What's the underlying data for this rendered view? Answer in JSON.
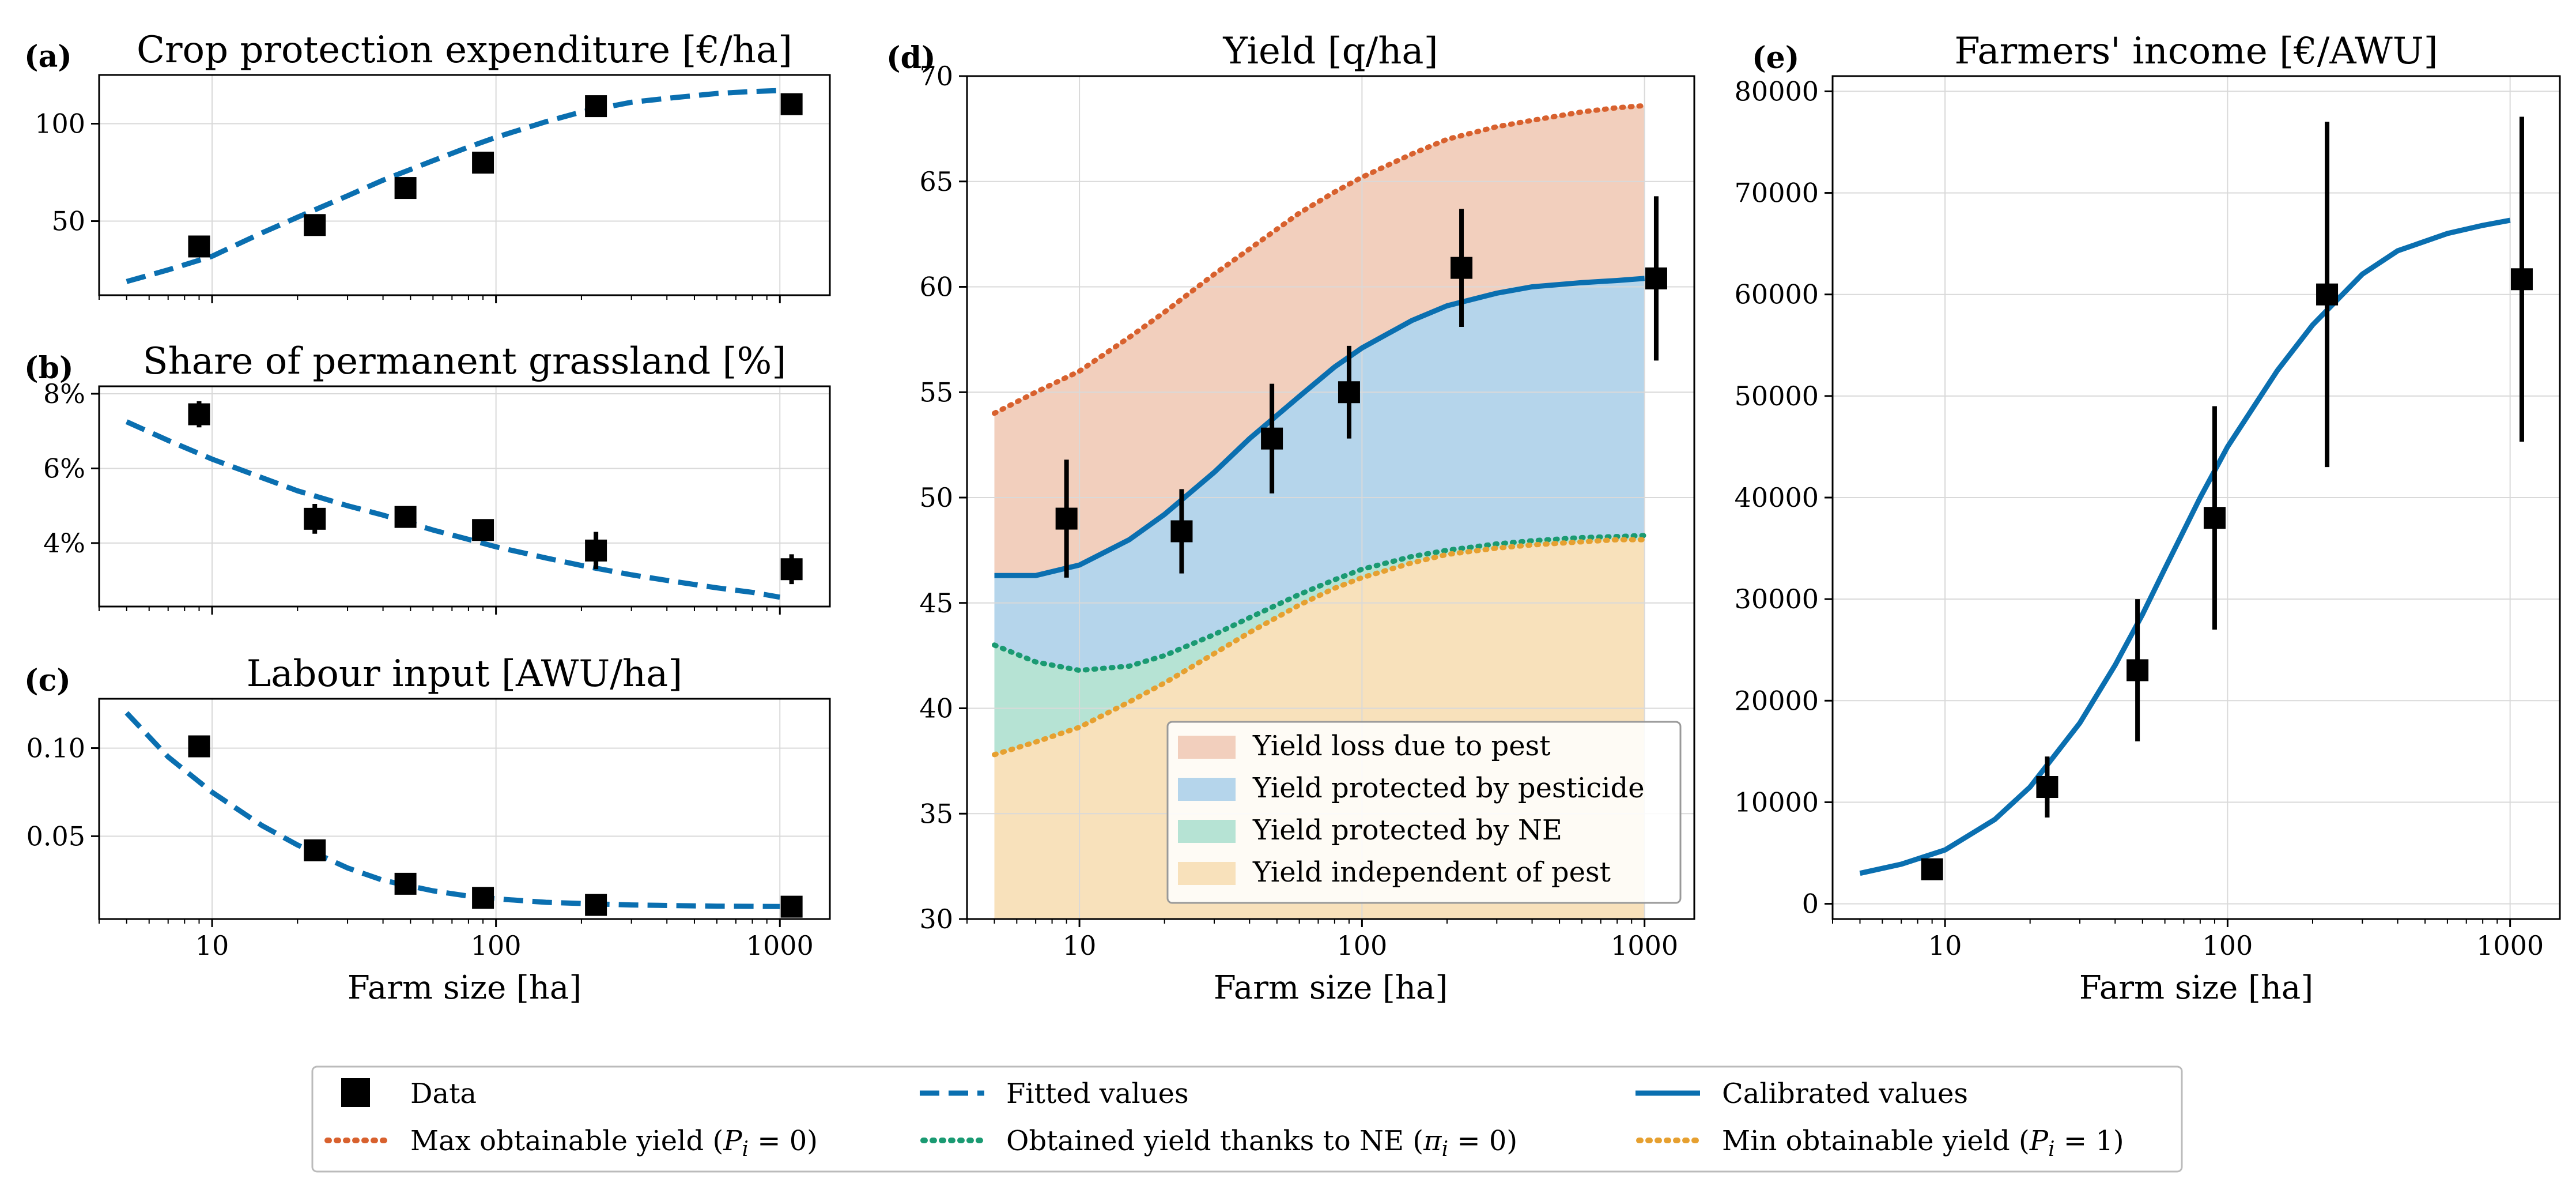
{
  "colors": {
    "data": "#000000",
    "fitted": "#0a6fb0",
    "calibrated": "#0a6fb0",
    "max_yield": "#d8612e",
    "ne_yield": "#1a9a72",
    "min_yield": "#e6a030",
    "fill_loss": "#f2cfbd",
    "fill_pesticide": "#b5d5eb",
    "fill_ne": "#b6e3d4",
    "fill_independent": "#f8e1bb",
    "grid": "#d9d9d9"
  },
  "x_ticks": [
    {
      "value": 10,
      "label": "10"
    },
    {
      "value": 100,
      "label": "100"
    },
    {
      "value": 1000,
      "label": "1000"
    }
  ],
  "chart_data": [
    {
      "id": "a",
      "type": "scatter",
      "panel_label": "(a)",
      "title": "Crop protection expenditure [€/ha]",
      "xlabel": "",
      "xscale": "log",
      "xlim": [
        4,
        1500
      ],
      "ylim": [
        12,
        125
      ],
      "yticks": [
        {
          "value": 50,
          "label": "50"
        },
        {
          "value": 100,
          "label": "100"
        }
      ],
      "points": [
        {
          "x": 9,
          "y": 37
        },
        {
          "x": 23,
          "y": 48
        },
        {
          "x": 48,
          "y": 67
        },
        {
          "x": 90,
          "y": 80
        },
        {
          "x": 225,
          "y": 109
        },
        {
          "x": 1100,
          "y": 110,
          "err": 5
        }
      ],
      "fitted": {
        "x": [
          5,
          7,
          10,
          15,
          20,
          30,
          40,
          60,
          80,
          100,
          150,
          200,
          300,
          400,
          600,
          800,
          1000
        ],
        "y": [
          19,
          25,
          32,
          44,
          52,
          63,
          71,
          81,
          88,
          93,
          101,
          106,
          111,
          113,
          115.5,
          116.5,
          117
        ]
      }
    },
    {
      "id": "b",
      "type": "scatter",
      "panel_label": "(b)",
      "title": "Share of permanent grassland [%]",
      "xlabel": "",
      "xscale": "log",
      "xlim": [
        4,
        1500
      ],
      "ylim": [
        2.3,
        8.2
      ],
      "yticks": [
        {
          "value": 4,
          "label": "4%"
        },
        {
          "value": 6,
          "label": "6%"
        },
        {
          "value": 8,
          "label": "8%"
        }
      ],
      "points": [
        {
          "x": 9,
          "y": 7.45,
          "err": 0.35
        },
        {
          "x": 23,
          "y": 4.65,
          "err": 0.4
        },
        {
          "x": 48,
          "y": 4.7,
          "err": 0.2
        },
        {
          "x": 90,
          "y": 4.35,
          "err": 0.15
        },
        {
          "x": 225,
          "y": 3.8,
          "err": 0.5
        },
        {
          "x": 1100,
          "y": 3.3,
          "err": 0.4
        }
      ],
      "fitted": {
        "x": [
          5,
          7,
          10,
          15,
          20,
          30,
          40,
          60,
          80,
          100,
          150,
          200,
          300,
          400,
          600,
          800,
          1000
        ],
        "y": [
          7.25,
          6.75,
          6.25,
          5.75,
          5.4,
          5.0,
          4.75,
          4.35,
          4.1,
          3.9,
          3.6,
          3.4,
          3.15,
          3.0,
          2.8,
          2.68,
          2.55
        ]
      }
    },
    {
      "id": "c",
      "type": "scatter",
      "panel_label": "(c)",
      "title": "Labour input [AWU/ha]",
      "xlabel": "Farm size [ha]",
      "xscale": "log",
      "xlim": [
        4,
        1500
      ],
      "ylim": [
        0.003,
        0.128
      ],
      "yticks": [
        {
          "value": 0.05,
          "label": "0.05"
        },
        {
          "value": 0.1,
          "label": "0.10"
        }
      ],
      "points": [
        {
          "x": 9,
          "y": 0.101
        },
        {
          "x": 23,
          "y": 0.042
        },
        {
          "x": 48,
          "y": 0.023
        },
        {
          "x": 90,
          "y": 0.015
        },
        {
          "x": 225,
          "y": 0.011
        },
        {
          "x": 1100,
          "y": 0.01
        }
      ],
      "fitted": {
        "x": [
          5,
          7,
          10,
          15,
          20,
          30,
          40,
          60,
          80,
          100,
          150,
          200,
          300,
          400,
          600,
          800,
          1000
        ],
        "y": [
          0.12,
          0.095,
          0.075,
          0.056,
          0.045,
          0.032,
          0.025,
          0.019,
          0.016,
          0.0145,
          0.0125,
          0.0118,
          0.011,
          0.0107,
          0.0103,
          0.0102,
          0.0101
        ]
      }
    },
    {
      "id": "d",
      "type": "area",
      "panel_label": "(d)",
      "title": "Yield [q/ha]",
      "xlabel": "Farm size [ha]",
      "xscale": "log",
      "xlim": [
        4,
        1500
      ],
      "ylim": [
        30,
        70
      ],
      "yticks": [
        {
          "value": 30,
          "label": "30"
        },
        {
          "value": 35,
          "label": "35"
        },
        {
          "value": 40,
          "label": "40"
        },
        {
          "value": 45,
          "label": "45"
        },
        {
          "value": 50,
          "label": "50"
        },
        {
          "value": 55,
          "label": "55"
        },
        {
          "value": 60,
          "label": "60"
        },
        {
          "value": 65,
          "label": "65"
        },
        {
          "value": 70,
          "label": "70"
        }
      ],
      "curve_x": [
        5,
        7,
        10,
        15,
        20,
        30,
        40,
        60,
        80,
        100,
        150,
        200,
        300,
        400,
        600,
        800,
        1000
      ],
      "max_yield": [
        54,
        55,
        56,
        57.6,
        58.8,
        60.6,
        61.8,
        63.5,
        64.5,
        65.2,
        66.3,
        67,
        67.6,
        67.9,
        68.3,
        68.5,
        68.6
      ],
      "calibrated": [
        46.3,
        46.3,
        46.8,
        48,
        49.2,
        51.2,
        52.8,
        54.8,
        56.2,
        57.1,
        58.4,
        59.1,
        59.7,
        60,
        60.2,
        60.3,
        60.4
      ],
      "ne_yield": [
        43,
        42.2,
        41.8,
        42,
        42.5,
        43.5,
        44.3,
        45.4,
        46.1,
        46.6,
        47.2,
        47.5,
        47.8,
        47.95,
        48.1,
        48.15,
        48.2
      ],
      "min_yield": [
        37.8,
        38.4,
        39.1,
        40.3,
        41.2,
        42.6,
        43.6,
        44.9,
        45.7,
        46.2,
        46.9,
        47.3,
        47.6,
        47.75,
        47.9,
        48,
        48
      ],
      "points": [
        {
          "x": 9,
          "y": 49,
          "err": 2.8
        },
        {
          "x": 23,
          "y": 48.4,
          "err": 2
        },
        {
          "x": 48,
          "y": 52.8,
          "err": 2.6
        },
        {
          "x": 90,
          "y": 55,
          "err": 2.2
        },
        {
          "x": 225,
          "y": 60.9,
          "err": 2.8
        },
        {
          "x": 1100,
          "y": 60.4,
          "err": 3.9
        }
      ],
      "legend": [
        {
          "key": "fill_loss",
          "label": "Yield loss due to pest"
        },
        {
          "key": "fill_pesticide",
          "label": "Yield protected by pesticide"
        },
        {
          "key": "fill_ne",
          "label": "Yield protected by NE"
        },
        {
          "key": "fill_independent",
          "label": "Yield independent of pest"
        }
      ]
    },
    {
      "id": "e",
      "type": "line",
      "panel_label": "(e)",
      "title": "Farmers' income [€/AWU]",
      "xlabel": "Farm size [ha]",
      "xscale": "log",
      "xlim": [
        4,
        1500
      ],
      "ylim": [
        -1500,
        81500
      ],
      "yticks": [
        {
          "value": 0,
          "label": "0"
        },
        {
          "value": 10000,
          "label": "10000"
        },
        {
          "value": 20000,
          "label": "20000"
        },
        {
          "value": 30000,
          "label": "30000"
        },
        {
          "value": 40000,
          "label": "40000"
        },
        {
          "value": 50000,
          "label": "50000"
        },
        {
          "value": 60000,
          "label": "60000"
        },
        {
          "value": 70000,
          "label": "70000"
        },
        {
          "value": 80000,
          "label": "80000"
        }
      ],
      "points": [
        {
          "x": 9,
          "y": 3400,
          "err": 800
        },
        {
          "x": 23,
          "y": 11500,
          "err": 3000
        },
        {
          "x": 48,
          "y": 23000,
          "err": 7000
        },
        {
          "x": 90,
          "y": 38000,
          "err": 11000
        },
        {
          "x": 225,
          "y": 60000,
          "err": 17000
        },
        {
          "x": 1100,
          "y": 61500,
          "err": 16000
        }
      ],
      "calibrated": {
        "x": [
          5,
          7,
          10,
          15,
          20,
          30,
          40,
          50,
          60,
          80,
          100,
          150,
          200,
          300,
          400,
          600,
          800,
          1000
        ],
        "y": [
          3000,
          3900,
          5300,
          8300,
          11500,
          17800,
          23500,
          28500,
          33000,
          40000,
          45000,
          52500,
          57000,
          62000,
          64300,
          66000,
          66800,
          67300
        ]
      }
    }
  ],
  "legend": {
    "items": [
      {
        "key": "data",
        "label": "Data"
      },
      {
        "key": "fitted",
        "label": "Fitted values"
      },
      {
        "key": "calibrated",
        "label": "Calibrated values"
      },
      {
        "key": "max_yield",
        "label": "Max obtainable yield (",
        "math": "P",
        "sub": "i",
        "suffix": " = 0)"
      },
      {
        "key": "ne_yield",
        "label": "Obtained yield thanks to NE (",
        "math": "π",
        "sub": "i",
        "suffix": " = 0)"
      },
      {
        "key": "min_yield",
        "label": "Min obtainable yield (",
        "math": "P",
        "sub": "i",
        "suffix": " = 1)"
      }
    ]
  }
}
